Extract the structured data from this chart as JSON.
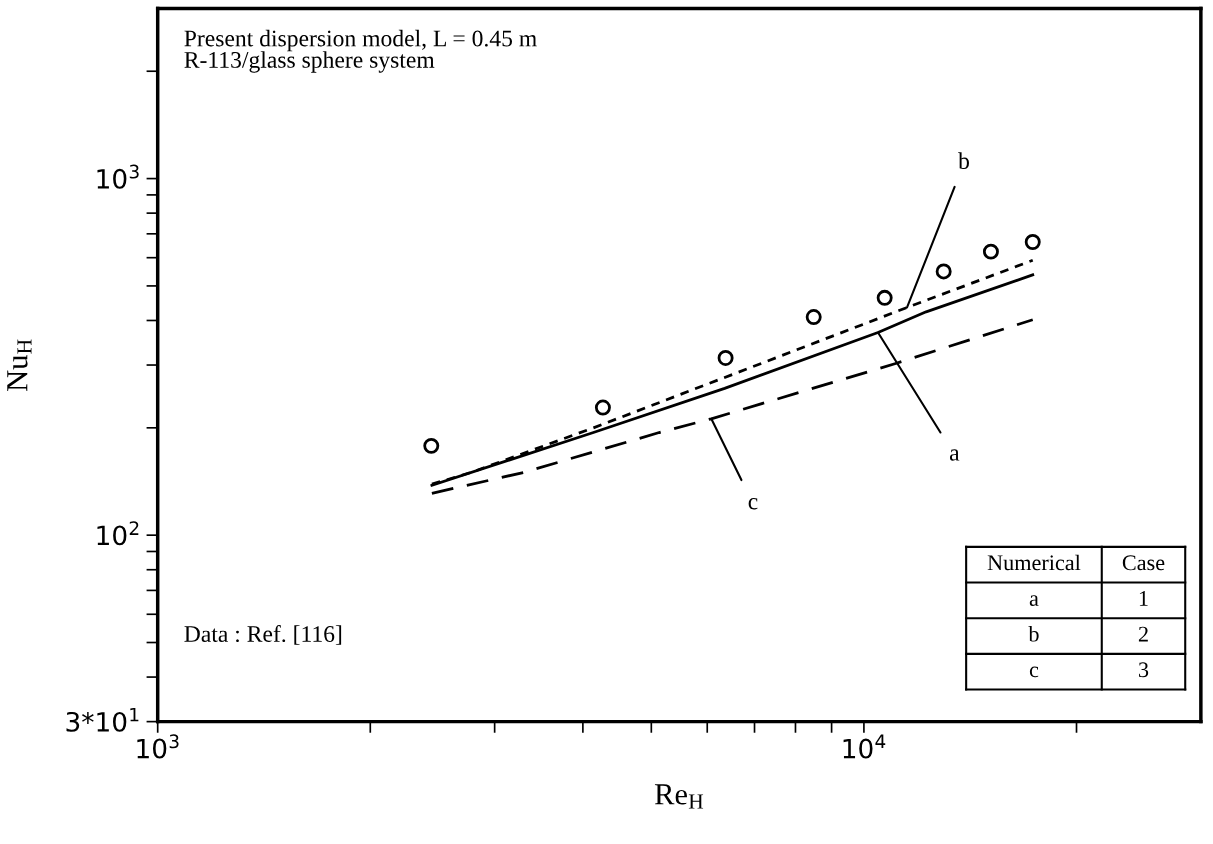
{
  "chart_data": {
    "type": "line",
    "xlabel": "Re$_{H}$",
    "ylabel": "Nu$_{H}$",
    "log": "xy",
    "grid": false,
    "xlim": [
      1000,
      30000
    ],
    "ylim": [
      30,
      3000
    ],
    "xticks": [
      {
        "value": 1000,
        "label": "10$^{3}$"
      },
      {
        "value": 2000,
        "label": null
      },
      {
        "value": 3000,
        "label": null
      },
      {
        "value": 4000,
        "label": null
      },
      {
        "value": 5000,
        "label": null
      },
      {
        "value": 6000,
        "label": null
      },
      {
        "value": 7000,
        "label": null
      },
      {
        "value": 8000,
        "label": null
      },
      {
        "value": 9000,
        "label": null
      },
      {
        "value": 10000,
        "label": "10$^{4}$"
      },
      {
        "value": 20000,
        "label": null
      }
    ],
    "yticks": [
      {
        "value": 30,
        "label": "3*10$^{1}$"
      },
      {
        "value": 40,
        "label": null
      },
      {
        "value": 50,
        "label": null
      },
      {
        "value": 60,
        "label": null
      },
      {
        "value": 70,
        "label": null
      },
      {
        "value": 80,
        "label": null
      },
      {
        "value": 90,
        "label": null
      },
      {
        "value": 100,
        "label": "10$^{2}$"
      },
      {
        "value": 200,
        "label": null
      },
      {
        "value": 300,
        "label": null
      },
      {
        "value": 400,
        "label": null
      },
      {
        "value": 500,
        "label": null
      },
      {
        "value": 600,
        "label": null
      },
      {
        "value": 700,
        "label": null
      },
      {
        "value": 800,
        "label": null
      },
      {
        "value": 900,
        "label": null
      },
      {
        "value": 1000,
        "label": "10$^{3}$"
      },
      {
        "value": 2000,
        "label": null
      }
    ],
    "series": [
      {
        "type": "scatter",
        "marker": "circle",
        "color": "#000000",
        "x": [
          2440,
          4270,
          6370,
          8490,
          10700,
          12970,
          15130,
          17340
        ],
        "values": [
          178,
          228,
          314,
          409,
          463,
          549,
          624,
          664
        ]
      },
      {
        "type": "line",
        "line_style": "solid",
        "color": "#000000",
        "x": [
          2445,
          4140,
          6350,
          10470,
          12250,
          17340
        ],
        "values": [
          138,
          194,
          258,
          370,
          423,
          537
        ]
      },
      {
        "type": "line",
        "line_style": "dotted",
        "color": "#000000",
        "x": [
          2445,
          2780,
          4140,
          11510,
          17340
        ],
        "values": [
          139,
          150,
          200,
          435,
          590
        ]
      },
      {
        "type": "line",
        "line_style": "dashed",
        "color": "#000000",
        "x": [
          2445,
          3300,
          5130,
          6080,
          11090,
          17340
        ],
        "values": [
          131,
          150,
          194,
          212,
          303,
          402
        ]
      }
    ],
    "annotations": [
      "Present dispersion model, L = 0.45 m",
      "R-113/glass sphere system",
      "Data : Ref. [116]",
      {
        "text": "a",
        "x": 10470,
        "y": 370
      },
      {
        "text": "b",
        "x": 11510,
        "y": 435
      },
      {
        "text": "c",
        "x": 6080,
        "y": 212
      },
      "Numerical",
      "Case",
      "a",
      "1",
      "b",
      "2",
      "c",
      "3"
    ]
  }
}
